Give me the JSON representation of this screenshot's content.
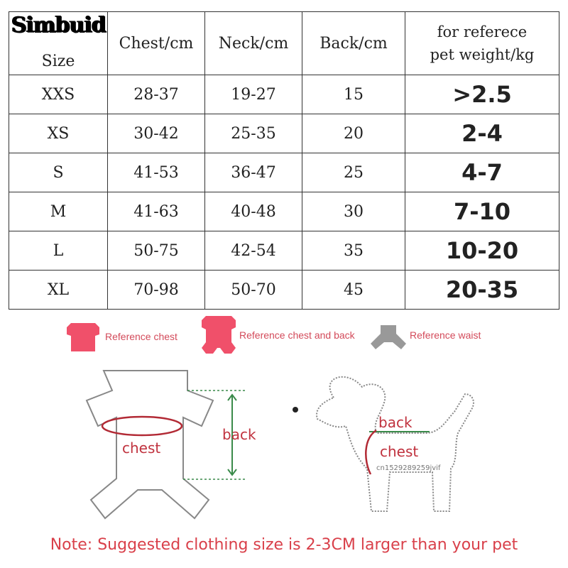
{
  "brand": "Simbuid",
  "table": {
    "headers": [
      "Size",
      "Chest/cm",
      "Neck/cm",
      "Back/cm",
      "for referece pet weight/kg"
    ],
    "header_weight_lines": [
      "for referece",
      "pet weight/kg"
    ],
    "rows": [
      [
        "XXS",
        "28-37",
        "19-27",
        "15",
        ">2.5"
      ],
      [
        "XS",
        "30-42",
        "25-35",
        "20",
        "2-4"
      ],
      [
        "S",
        "41-53",
        "36-47",
        "25",
        "4-7"
      ],
      [
        "M",
        "41-63",
        "40-48",
        "30",
        "7-10"
      ],
      [
        "L",
        "50-75",
        "42-54",
        "35",
        "10-20"
      ],
      [
        "XL",
        "70-98",
        "50-70",
        "45",
        "20-35"
      ]
    ]
  },
  "legend": [
    {
      "icon": "shirt-icon",
      "label": "Reference chest",
      "color": "#f0506a"
    },
    {
      "icon": "jumpsuit-icon",
      "label": "Reference chest and back",
      "color": "#f0506a"
    },
    {
      "icon": "waist-icon",
      "label": "Reference waist",
      "color": "#999999"
    }
  ],
  "diagram": {
    "clothes_chest": "chest",
    "clothes_back": "back",
    "dog_back": "back",
    "dog_chest": "chest",
    "watermark": "cn1529289259jvif"
  },
  "note": "Note: Suggested clothing size is 2-3CM larger than your pet"
}
